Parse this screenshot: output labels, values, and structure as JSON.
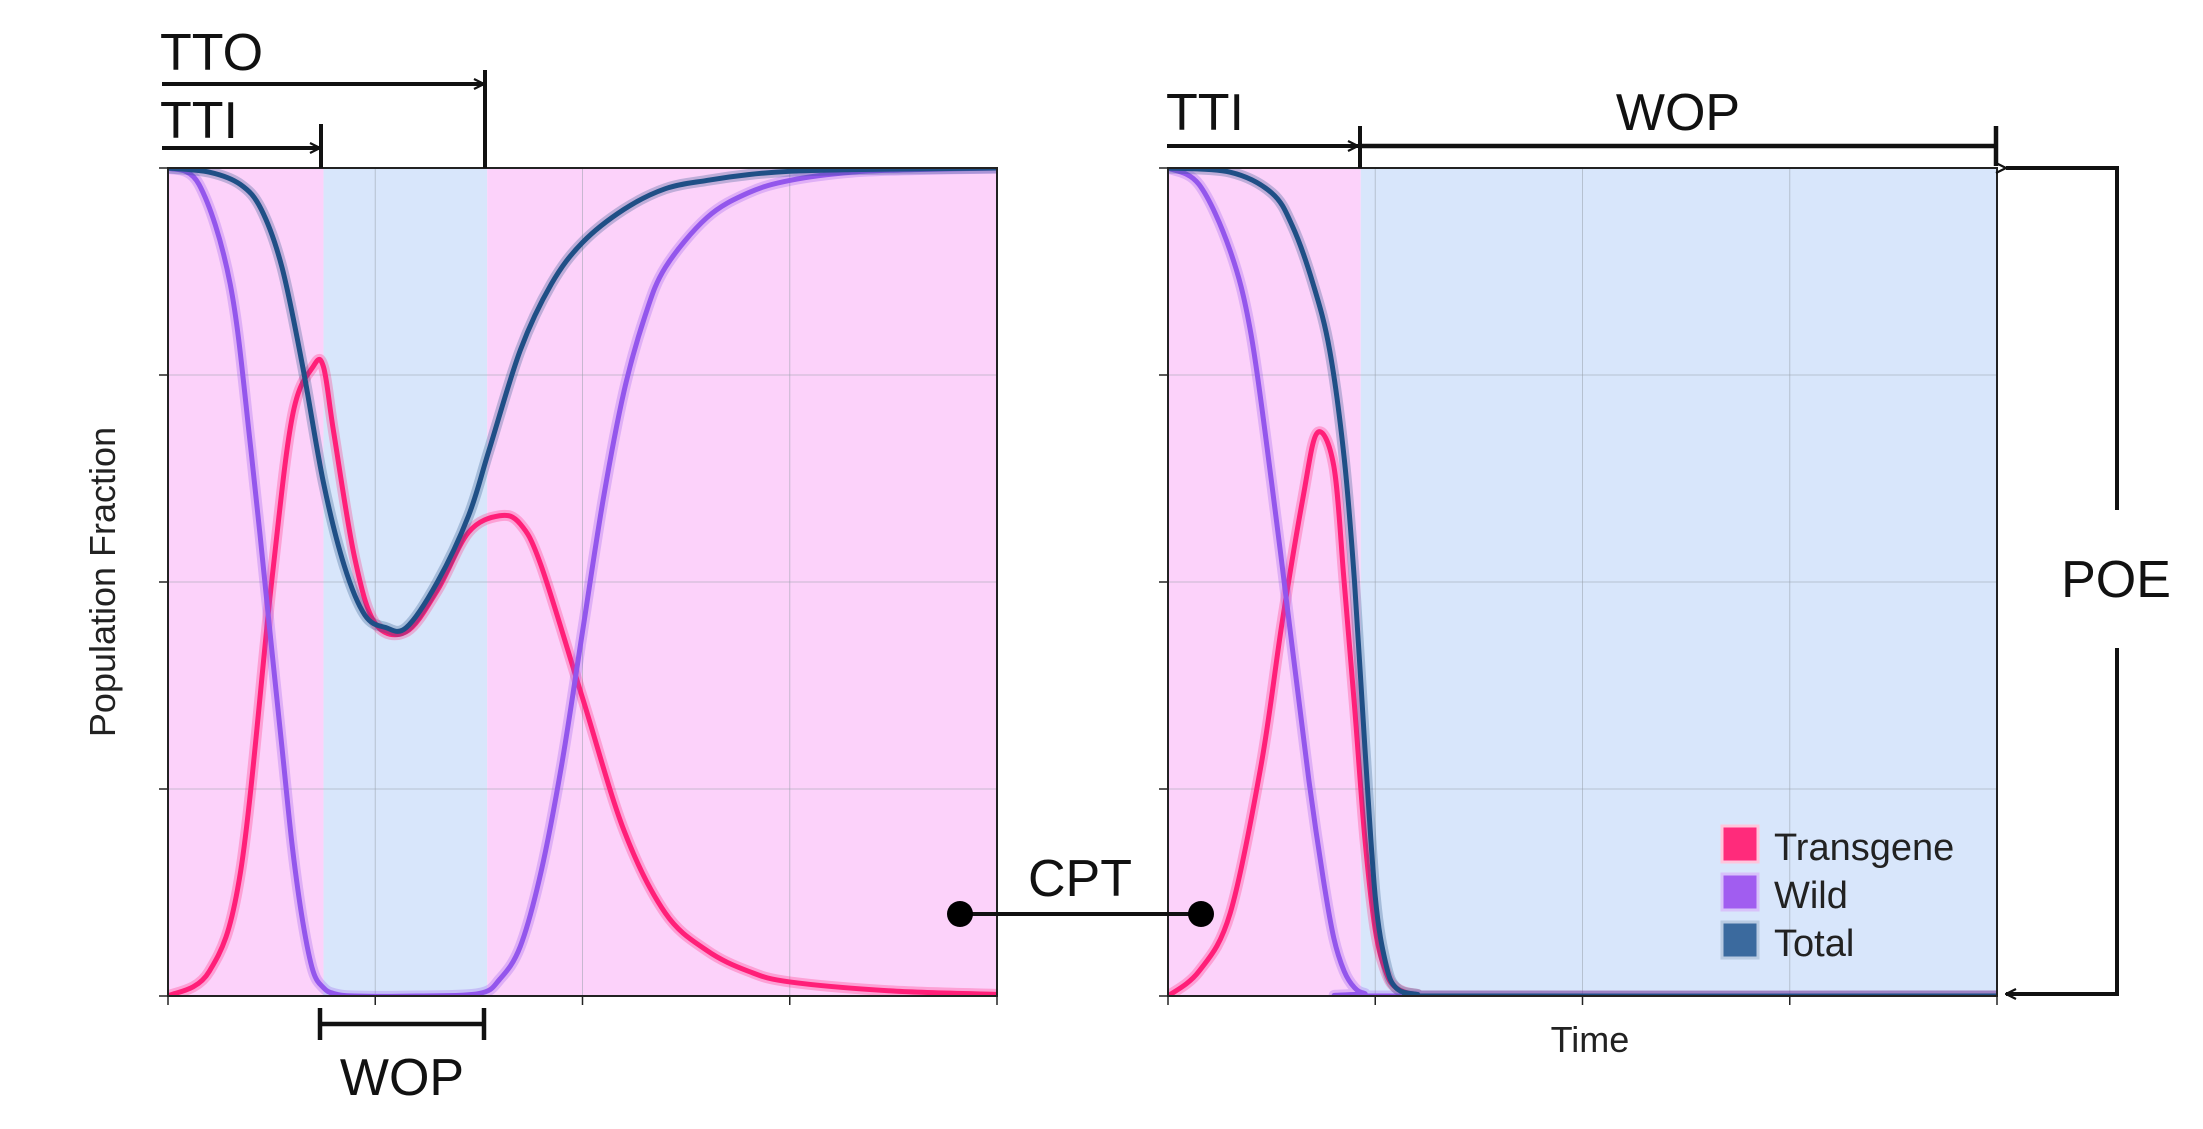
{
  "chart_data": [
    {
      "type": "line",
      "panel": "left",
      "ylabel": "Population Fraction",
      "xlabel": "",
      "xlim": [
        0,
        4
      ],
      "ylim": [
        0,
        1
      ],
      "xticks": [
        0,
        1,
        2,
        3,
        4
      ],
      "yticks": [
        0,
        0.25,
        0.5,
        0.75,
        1
      ],
      "grid": true,
      "bands": [
        {
          "name": "wop",
          "from": 0.75,
          "to": 1.54,
          "color": "#d8e6fb"
        },
        {
          "name": "transgene-region",
          "from": 0,
          "to": 0.75,
          "color": "#fcd2fa"
        },
        {
          "name": "transgene-region",
          "from": 1.54,
          "to": 4,
          "color": "#fcd2fa"
        }
      ],
      "series": [
        {
          "name": "Transgene",
          "color": "#ff1f78",
          "x": [
            0,
            0.2,
            0.35,
            0.5,
            0.6,
            0.7,
            0.75,
            0.8,
            0.9,
            1.0,
            1.15,
            1.3,
            1.45,
            1.6,
            1.7,
            1.8,
            2.0,
            2.2,
            2.4,
            2.6,
            2.8,
            3.0,
            3.5,
            4.0
          ],
          "y": [
            0.0,
            0.03,
            0.15,
            0.5,
            0.7,
            0.76,
            0.76,
            0.68,
            0.53,
            0.45,
            0.44,
            0.49,
            0.56,
            0.58,
            0.57,
            0.52,
            0.36,
            0.2,
            0.1,
            0.055,
            0.03,
            0.017,
            0.006,
            0.002
          ]
        },
        {
          "name": "Wild",
          "color": "#9356ec",
          "x": [
            0,
            0.15,
            0.3,
            0.4,
            0.5,
            0.55,
            0.6,
            0.65,
            0.7,
            0.75,
            0.8,
            0.9,
            1.2,
            1.5,
            1.6,
            1.7,
            1.8,
            1.9,
            2.0,
            2.1,
            2.2,
            2.3,
            2.4,
            2.6,
            2.8,
            3.0,
            3.3,
            3.6,
            4.0
          ],
          "y": [
            1.0,
            0.98,
            0.86,
            0.66,
            0.42,
            0.3,
            0.18,
            0.09,
            0.03,
            0.01,
            0.003,
            0.0,
            0.0,
            0.003,
            0.02,
            0.06,
            0.15,
            0.28,
            0.44,
            0.6,
            0.73,
            0.82,
            0.88,
            0.94,
            0.97,
            0.985,
            0.995,
            0.998,
            1.0
          ]
        },
        {
          "name": "Total",
          "color": "#1f4f86",
          "x": [
            0,
            0.2,
            0.35,
            0.45,
            0.55,
            0.65,
            0.75,
            0.85,
            0.95,
            1.05,
            1.15,
            1.3,
            1.45,
            1.55,
            1.7,
            1.85,
            2.0,
            2.2,
            2.4,
            2.6,
            2.8,
            3.0,
            3.3,
            3.6,
            4.0
          ],
          "y": [
            1.0,
            0.995,
            0.98,
            0.95,
            0.88,
            0.76,
            0.62,
            0.52,
            0.46,
            0.445,
            0.445,
            0.5,
            0.58,
            0.66,
            0.78,
            0.86,
            0.91,
            0.95,
            0.975,
            0.985,
            0.992,
            0.996,
            0.998,
            0.999,
            1.0
          ]
        }
      ]
    },
    {
      "type": "line",
      "panel": "right",
      "ylabel": "",
      "xlabel": "Time",
      "xlim": [
        0,
        4
      ],
      "ylim": [
        0,
        1
      ],
      "xticks": [
        0,
        1,
        2,
        3,
        4
      ],
      "yticks": [
        0,
        0.25,
        0.5,
        0.75,
        1
      ],
      "grid": true,
      "legend": "bottom-right",
      "bands": [
        {
          "name": "transgene-region",
          "from": 0,
          "to": 0.93,
          "color": "#fcd2fa"
        },
        {
          "name": "wop",
          "from": 0.93,
          "to": 4,
          "color": "#d8e6fb"
        }
      ],
      "series": [
        {
          "name": "Transgene",
          "color": "#ff1f78",
          "x": [
            0,
            0.15,
            0.3,
            0.45,
            0.55,
            0.65,
            0.72,
            0.8,
            0.85,
            0.9,
            0.95,
            1.0,
            1.05,
            1.1,
            1.2,
            1.4,
            4.0
          ],
          "y": [
            0.0,
            0.03,
            0.1,
            0.28,
            0.45,
            0.6,
            0.68,
            0.64,
            0.5,
            0.35,
            0.19,
            0.08,
            0.03,
            0.01,
            0.002,
            0.0,
            0.0
          ]
        },
        {
          "name": "Wild",
          "color": "#9356ec",
          "x": [
            0,
            0.15,
            0.3,
            0.4,
            0.5,
            0.6,
            0.68,
            0.75,
            0.8,
            0.85,
            0.9,
            0.95,
            1.05,
            4.0
          ],
          "y": [
            1.0,
            0.98,
            0.9,
            0.8,
            0.62,
            0.42,
            0.26,
            0.14,
            0.07,
            0.03,
            0.01,
            0.003,
            0.0,
            0.0
          ]
        },
        {
          "name": "Total",
          "color": "#1f4f86",
          "x": [
            0,
            0.3,
            0.5,
            0.6,
            0.7,
            0.78,
            0.85,
            0.9,
            0.95,
            1.0,
            1.05,
            1.1,
            1.2,
            1.4,
            4.0
          ],
          "y": [
            1.0,
            0.995,
            0.97,
            0.93,
            0.86,
            0.78,
            0.65,
            0.5,
            0.3,
            0.12,
            0.04,
            0.01,
            0.002,
            0.0,
            0.0
          ]
        }
      ]
    }
  ],
  "annotations": {
    "left": {
      "tto": "TTO",
      "tti": "TTI",
      "wop": "WOP"
    },
    "right": {
      "tti": "TTI",
      "wop": "WOP",
      "poe": "POE"
    },
    "cpt": "CPT"
  },
  "legend": {
    "items": [
      {
        "label": "Transgene",
        "color": "#ff2b7b"
      },
      {
        "label": "Wild",
        "color": "#a15df0"
      },
      {
        "label": "Total",
        "color": "#3b6a9e"
      }
    ]
  }
}
